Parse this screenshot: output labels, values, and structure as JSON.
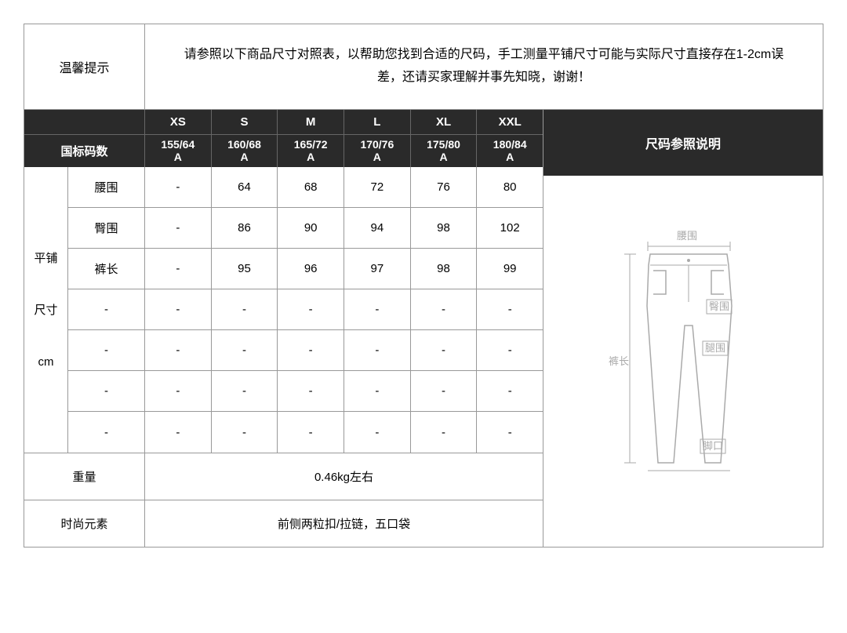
{
  "colors": {
    "border": "#999999",
    "headerBg": "#2a2a2a",
    "headerText": "#ffffff",
    "bodyText": "#000000",
    "diagramLine": "#aaaaaa",
    "diagramText": "#aaaaaa",
    "background": "#ffffff"
  },
  "layout": {
    "tipLabelWidth": 154,
    "leftBlockWidth": 662,
    "vertLabelWidth": 56,
    "measureLabelWidth": 98,
    "dataRowHeight": 52,
    "footRowHeight": 60,
    "headerSizeRowHeight": 32
  },
  "tip": {
    "label": "温馨提示",
    "content": "请参照以下商品尺寸对照表，以帮助您找到合适的尺码，手工测量平铺尺寸可能与实际尺寸直接存在1-2cm误差，还请买家理解并事先知晓，谢谢！"
  },
  "header": {
    "rowLabel": "国标码数",
    "sizes": [
      "XS",
      "S",
      "M",
      "L",
      "XL",
      "XXL"
    ],
    "codes": [
      "155/64A",
      "160/68A",
      "165/72A",
      "170/76A",
      "175/80A",
      "180/84A"
    ]
  },
  "rightHeader": "尺码参照说明",
  "vertLabel": "平铺\n尺寸\ncm",
  "measurements": [
    {
      "label": "腰围",
      "values": [
        "-",
        "64",
        "68",
        "72",
        "76",
        "80"
      ]
    },
    {
      "label": "臀围",
      "values": [
        "-",
        "86",
        "90",
        "94",
        "98",
        "102"
      ]
    },
    {
      "label": "裤长",
      "values": [
        "-",
        "95",
        "96",
        "97",
        "98",
        "99"
      ]
    },
    {
      "label": "-",
      "values": [
        "-",
        "-",
        "-",
        "-",
        "-",
        "-"
      ]
    },
    {
      "label": "-",
      "values": [
        "-",
        "-",
        "-",
        "-",
        "-",
        "-"
      ]
    },
    {
      "label": "-",
      "values": [
        "-",
        "-",
        "-",
        "-",
        "-",
        "-"
      ]
    },
    {
      "label": "-",
      "values": [
        "-",
        "-",
        "-",
        "-",
        "-",
        "-"
      ]
    }
  ],
  "footer": [
    {
      "label": "重量",
      "value": "0.46kg左右"
    },
    {
      "label": "时尚元素",
      "value": "前侧两粒扣/拉链，五口袋"
    }
  ],
  "diagram": {
    "labels": {
      "waist": "腰围",
      "hip": "臀围",
      "thigh": "腿围",
      "length": "裤长",
      "cuff": "脚口"
    }
  }
}
